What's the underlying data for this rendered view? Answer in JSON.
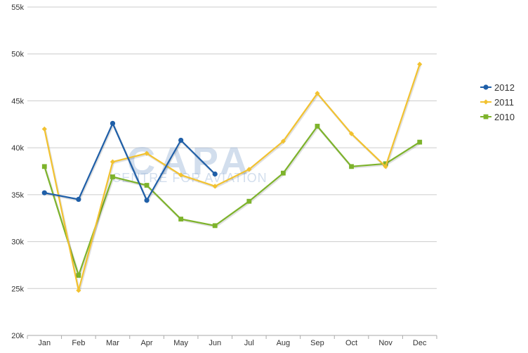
{
  "watermark": {
    "logo": "CAPA",
    "tagline": "CENTRE FOR AVIATION"
  },
  "chart_data": {
    "type": "line",
    "title": "",
    "xlabel": "",
    "ylabel": "",
    "categories": [
      "Jan",
      "Feb",
      "Mar",
      "Apr",
      "May",
      "Jun",
      "Jul",
      "Aug",
      "Sep",
      "Oct",
      "Nov",
      "Dec"
    ],
    "ylim": [
      20000,
      55000
    ],
    "yticks": [
      20000,
      25000,
      30000,
      35000,
      40000,
      45000,
      50000,
      55000
    ],
    "ytick_labels": [
      "20k",
      "25k",
      "30k",
      "35k",
      "40k",
      "45k",
      "50k",
      "55k"
    ],
    "grid": true,
    "legend_position": "right",
    "series": [
      {
        "name": "2012",
        "color": "#1f5fa8",
        "marker": "circle",
        "values": [
          35200,
          34500,
          42600,
          34400,
          40800,
          37200,
          null,
          null,
          null,
          null,
          null,
          null
        ]
      },
      {
        "name": "2011",
        "color": "#f2c230",
        "marker": "diamond",
        "values": [
          42000,
          24800,
          38500,
          39400,
          37100,
          35900,
          37700,
          40700,
          45800,
          41500,
          38000,
          48900
        ]
      },
      {
        "name": "2010",
        "color": "#7db32b",
        "marker": "square",
        "values": [
          38000,
          26400,
          36900,
          36000,
          32400,
          31700,
          34300,
          37300,
          42300,
          38000,
          38300,
          40600
        ]
      }
    ]
  }
}
